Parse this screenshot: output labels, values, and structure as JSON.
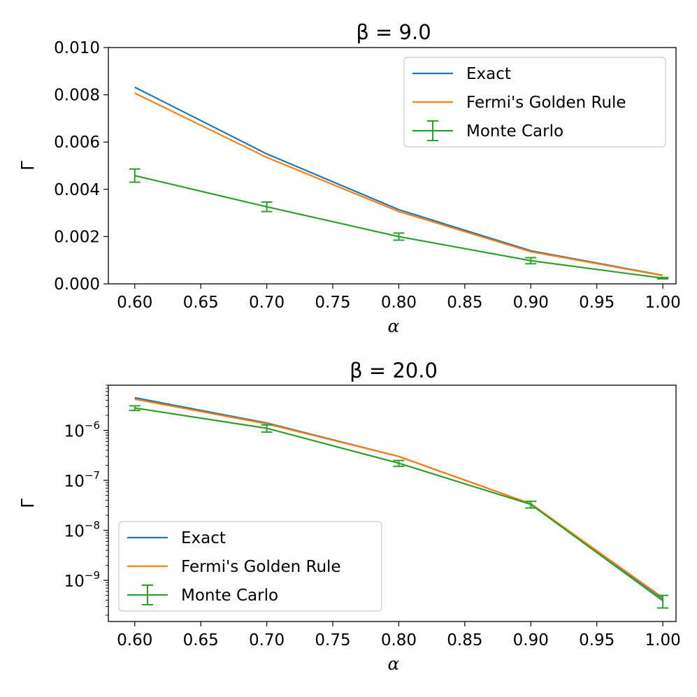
{
  "chart_data": [
    {
      "type": "line",
      "title": "β = 9.0",
      "xlabel": "α",
      "ylabel": "Γ",
      "yscale": "linear",
      "xlim": [
        0.58,
        1.01
      ],
      "ylim": [
        0.0,
        0.01
      ],
      "xticks": [
        "0.60",
        "0.65",
        "0.70",
        "0.75",
        "0.80",
        "0.85",
        "0.90",
        "0.95",
        "1.00"
      ],
      "yticks": [
        "0.000",
        "0.002",
        "0.004",
        "0.006",
        "0.008",
        "0.010"
      ],
      "legend_position": "upper right",
      "x": [
        0.6,
        0.7,
        0.8,
        0.9,
        1.0
      ],
      "series": [
        {
          "name": "Exact",
          "color": "#1f77b4",
          "values": [
            0.00832,
            0.0055,
            0.00314,
            0.0014,
            0.00036
          ]
        },
        {
          "name": "Fermi's Golden Rule",
          "color": "#ff7f0e",
          "values": [
            0.00807,
            0.00535,
            0.00306,
            0.00136,
            0.00035
          ]
        },
        {
          "name": "Monte Carlo",
          "color": "#2ca02c",
          "values": [
            0.00458,
            0.00326,
            0.002,
            0.00098,
            0.00024
          ],
          "errors": [
            0.00028,
            0.0002,
            0.00015,
            0.00013,
            3e-05
          ]
        }
      ]
    },
    {
      "type": "line",
      "title": "β = 20.0",
      "xlabel": "α",
      "ylabel": "Γ",
      "yscale": "log",
      "xlim": [
        0.58,
        1.01
      ],
      "ylim": [
        1.5e-10,
        8e-06
      ],
      "xticks": [
        "0.60",
        "0.65",
        "0.70",
        "0.75",
        "0.80",
        "0.85",
        "0.90",
        "0.95",
        "1.00"
      ],
      "yticks": [
        {
          "base": "10",
          "exp": "−9",
          "value": 1e-09
        },
        {
          "base": "10",
          "exp": "−8",
          "value": 1e-08
        },
        {
          "base": "10",
          "exp": "−7",
          "value": 1e-07
        },
        {
          "base": "10",
          "exp": "−6",
          "value": 1e-06
        }
      ],
      "legend_position": "lower left",
      "x": [
        0.6,
        0.7,
        0.8,
        0.9,
        1.0
      ],
      "series": [
        {
          "name": "Exact",
          "color": "#1f77b4",
          "values": [
            4.5e-06,
            1.4e-06,
            3e-07,
            3.4e-08,
            4.3e-10
          ]
        },
        {
          "name": "Fermi's Golden Rule",
          "color": "#ff7f0e",
          "values": [
            4.2e-06,
            1.35e-06,
            3e-07,
            3.4e-08,
            4.5e-10
          ]
        },
        {
          "name": "Monte Carlo",
          "color": "#2ca02c",
          "values": [
            2.8e-06,
            1.1e-06,
            2.2e-07,
            3.3e-08,
            3.9e-10
          ],
          "errlow": [
            2.5e-06,
            9.2e-07,
            1.9e-07,
            2.8e-08,
            2.8e-10
          ],
          "errhigh": [
            3.1e-06,
            1.28e-06,
            2.5e-07,
            3.8e-08,
            5e-10
          ]
        }
      ]
    }
  ]
}
